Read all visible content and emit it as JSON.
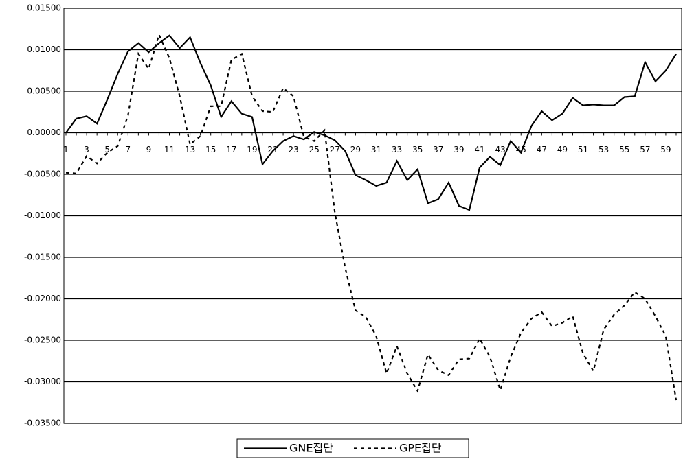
{
  "chart_data": {
    "type": "line",
    "categories": [
      "1",
      null,
      "3",
      null,
      "5",
      null,
      "7",
      null,
      "9",
      null,
      "11",
      null,
      "13",
      null,
      "15",
      null,
      "17",
      null,
      "19",
      null,
      "21",
      null,
      "23",
      null,
      "25",
      null,
      "27",
      null,
      "29",
      null,
      "31",
      null,
      "33",
      null,
      "35",
      null,
      "37",
      null,
      "39",
      null,
      "41",
      null,
      "43",
      null,
      "45",
      null,
      "47",
      null,
      "49",
      null,
      "51",
      null,
      "53",
      null,
      "55",
      null,
      "57",
      null,
      "59",
      null
    ],
    "series": [
      {
        "name": "GNE집단",
        "color": "#000000",
        "dash": "solid",
        "values": [
          0.0,
          0.0017,
          0.002,
          0.0011,
          0.004,
          0.0071,
          0.0098,
          0.0108,
          0.0097,
          0.0108,
          0.0117,
          0.0102,
          0.0115,
          0.0084,
          0.0057,
          0.0019,
          0.0038,
          0.0023,
          0.0019,
          -0.0038,
          -0.0022,
          -0.001,
          -0.0004,
          -0.0008,
          0.0001,
          -0.0003,
          -0.0009,
          -0.0022,
          -0.0051,
          -0.0057,
          -0.0064,
          -0.006,
          -0.0034,
          -0.0057,
          -0.0044,
          -0.0085,
          -0.008,
          -0.006,
          -0.0088,
          -0.0093,
          -0.0042,
          -0.0029,
          -0.0039,
          -0.001,
          -0.0024,
          0.0008,
          0.0026,
          0.0015,
          0.0023,
          0.0042,
          0.0033,
          0.0034,
          0.0033,
          0.0033,
          0.0043,
          0.0044,
          0.0085,
          0.0062,
          0.0075,
          0.0095
        ]
      },
      {
        "name": "GPE집단",
        "color": "#000000",
        "dash": "dotted",
        "values": [
          -0.0048,
          -0.0049,
          -0.0028,
          -0.0037,
          -0.0024,
          -0.0016,
          0.0021,
          0.0095,
          0.0077,
          0.0118,
          0.009,
          0.0044,
          -0.0014,
          -0.0004,
          0.0032,
          0.0032,
          0.0088,
          0.0095,
          0.0044,
          0.0026,
          0.0025,
          0.0054,
          0.0044,
          -0.0005,
          -0.001,
          0.0003,
          -0.0096,
          -0.0163,
          -0.0214,
          -0.0222,
          -0.0245,
          -0.029,
          -0.0257,
          -0.029,
          -0.0311,
          -0.0267,
          -0.0286,
          -0.0292,
          -0.0273,
          -0.0272,
          -0.0248,
          -0.027,
          -0.031,
          -0.027,
          -0.0241,
          -0.0224,
          -0.0216,
          -0.0233,
          -0.0229,
          -0.0221,
          -0.0266,
          -0.0287,
          -0.0237,
          -0.0219,
          -0.0208,
          -0.0192,
          -0.02,
          -0.0221,
          -0.0245,
          -0.0322
        ]
      }
    ],
    "ylim": [
      -0.035,
      0.015
    ],
    "yticks": [
      {
        "value": 0.015,
        "label": "0.01500"
      },
      {
        "value": 0.01,
        "label": "0.01000"
      },
      {
        "value": 0.005,
        "label": "0.00500"
      },
      {
        "value": 0,
        "label": "0.00000"
      },
      {
        "value": -0.005,
        "label": "-0.00500"
      },
      {
        "value": -0.01,
        "label": "-0.01000"
      },
      {
        "value": -0.015,
        "label": "-0.01500"
      },
      {
        "value": -0.02,
        "label": "-0.02000"
      },
      {
        "value": -0.025,
        "label": "-0.02500"
      },
      {
        "value": -0.03,
        "label": "-0.03000"
      },
      {
        "value": -0.035,
        "label": "-0.03500"
      }
    ],
    "grid": true,
    "legend": "bottom"
  }
}
